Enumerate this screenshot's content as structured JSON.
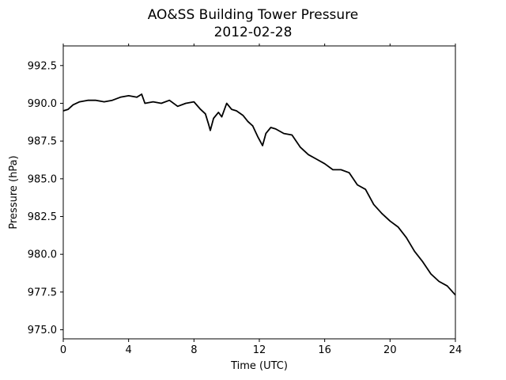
{
  "chart_data": {
    "type": "line",
    "title": "AO&SS Building Tower Pressure",
    "subtitle": "2012-02-28",
    "xlabel": "Time (UTC)",
    "ylabel": "Pressure (hPa)",
    "xlim": [
      0,
      24
    ],
    "ylim": [
      974.4,
      993.8
    ],
    "xticks": [
      0,
      4,
      8,
      12,
      16,
      20,
      24
    ],
    "xtick_labels": [
      "0",
      "4",
      "8",
      "12",
      "16",
      "20",
      "24"
    ],
    "yticks": [
      975.0,
      977.5,
      980.0,
      982.5,
      985.0,
      987.5,
      990.0,
      992.5
    ],
    "ytick_labels": [
      "975.0",
      "977.5",
      "980.0",
      "982.5",
      "985.0",
      "987.5",
      "990.0",
      "992.5"
    ],
    "grid": false,
    "line_color": "#000000",
    "series": [
      {
        "x": [
          0,
          0.3,
          0.6,
          1.0,
          1.5,
          2.0,
          2.5,
          3.0,
          3.5,
          4.0,
          4.5,
          4.8,
          5.0,
          5.5,
          6.0,
          6.5,
          7.0,
          7.5,
          8.0,
          8.4,
          8.7,
          8.9,
          9.0,
          9.2,
          9.5,
          9.7,
          10.0,
          10.3,
          10.6,
          11.0,
          11.3,
          11.6,
          11.9,
          12.2,
          12.4,
          12.7,
          13.0,
          13.5,
          14.0,
          14.5,
          15.0,
          15.5,
          16.0,
          16.5,
          17.0,
          17.5,
          18.0,
          18.5,
          19.0,
          19.5,
          20.0,
          20.5,
          21.0,
          21.5,
          22.0,
          22.5,
          23.0,
          23.5,
          24.0
        ],
        "y": [
          989.5,
          989.6,
          989.9,
          990.1,
          990.2,
          990.2,
          990.1,
          990.2,
          990.4,
          990.5,
          990.4,
          990.6,
          990.0,
          990.1,
          990.0,
          990.2,
          989.8,
          990.0,
          990.1,
          989.6,
          989.3,
          988.6,
          988.2,
          989.0,
          989.4,
          989.1,
          990.0,
          989.6,
          989.5,
          989.2,
          988.8,
          988.5,
          987.8,
          987.2,
          988.0,
          988.4,
          988.3,
          988.0,
          987.9,
          987.1,
          986.6,
          986.3,
          986.0,
          985.6,
          985.6,
          985.4,
          984.6,
          984.3,
          983.3,
          982.7,
          982.2,
          981.8,
          981.1,
          980.2,
          979.5,
          978.7,
          978.2,
          977.9,
          977.3
        ]
      }
    ]
  }
}
